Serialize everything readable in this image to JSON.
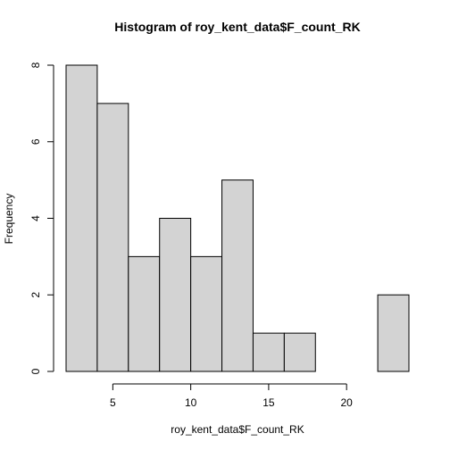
{
  "chart_data": {
    "type": "bar",
    "title": "Histogram of roy_kent_data$F_count_RK",
    "xlabel": "roy_kent_data$F_count_RK",
    "ylabel": "Frequency",
    "bins": [
      {
        "x0": 2,
        "x1": 4,
        "count": 8
      },
      {
        "x0": 4,
        "x1": 6,
        "count": 7
      },
      {
        "x0": 6,
        "x1": 8,
        "count": 3
      },
      {
        "x0": 8,
        "x1": 10,
        "count": 4
      },
      {
        "x0": 10,
        "x1": 12,
        "count": 3
      },
      {
        "x0": 12,
        "x1": 14,
        "count": 5
      },
      {
        "x0": 14,
        "x1": 16,
        "count": 1
      },
      {
        "x0": 16,
        "x1": 18,
        "count": 1
      },
      {
        "x0": 18,
        "x1": 20,
        "count": 0
      },
      {
        "x0": 20,
        "x1": 22,
        "count": 0
      },
      {
        "x0": 22,
        "x1": 24,
        "count": 2
      }
    ],
    "xlim": [
      2,
      24
    ],
    "ylim": [
      0,
      8
    ],
    "xticks": [
      "5",
      "10",
      "15",
      "20"
    ],
    "yticks": [
      "0",
      "2",
      "4",
      "6",
      "8"
    ],
    "bar_fill": "#d3d3d3",
    "bar_stroke": "#000000",
    "grid": false
  }
}
